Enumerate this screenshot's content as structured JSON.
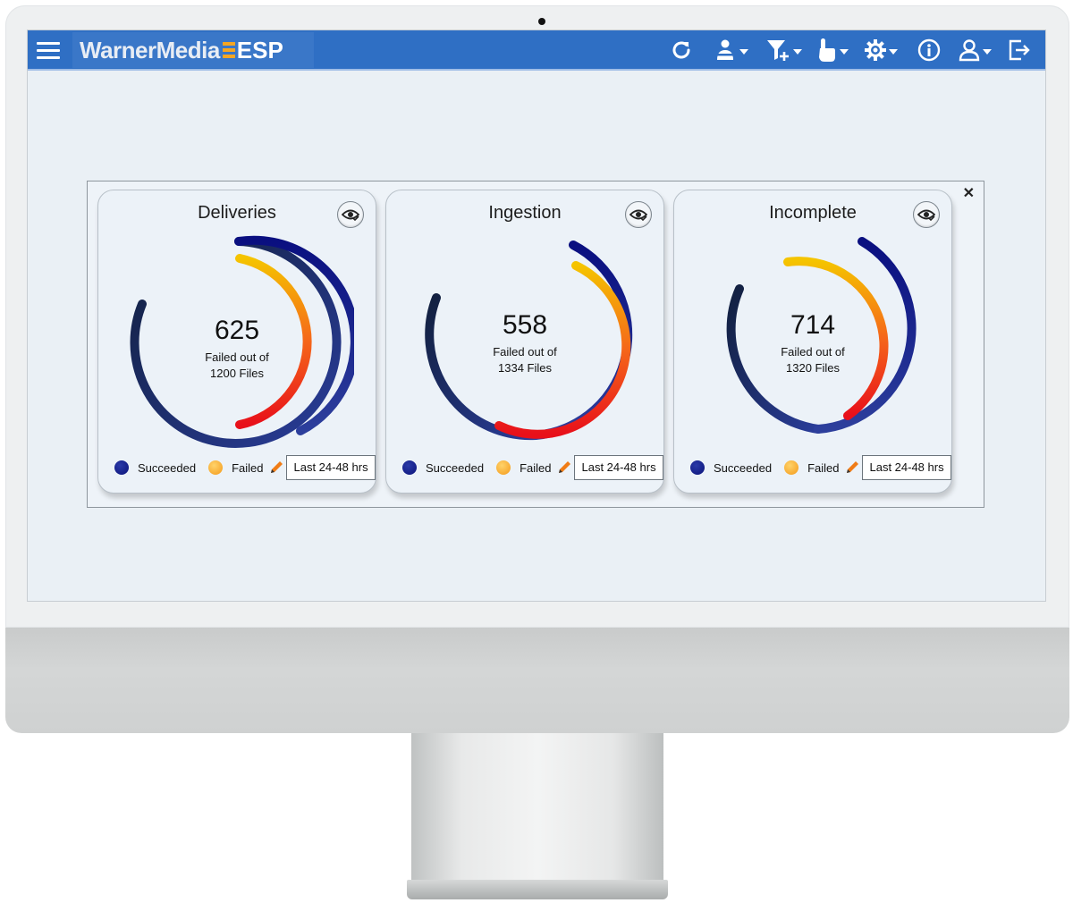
{
  "app": {
    "brand_name": "WarnerMedia",
    "brand_suffix": "ESP"
  },
  "toolbar": {
    "icons": [
      "menu-icon",
      "refresh-icon",
      "user-assign-icon",
      "filter-add-icon",
      "touch-icon",
      "settings-icon",
      "info-icon",
      "user-icon",
      "logout-icon"
    ]
  },
  "cards": [
    {
      "title": "Deliveries",
      "failed": "625",
      "line1": "Failed out of",
      "line2": "1200 Files",
      "failed_count": 625,
      "total_files": 1200,
      "legend_succeeded": "Succeeded",
      "legend_failed": "Failed",
      "range": "Last 24-48 hrs"
    },
    {
      "title": "Ingestion",
      "failed": "558",
      "line1": "Failed out of",
      "line2": "1334 Files",
      "failed_count": 558,
      "total_files": 1334,
      "legend_succeeded": "Succeeded",
      "legend_failed": "Failed",
      "range": "Last 24-48 hrs"
    },
    {
      "title": "Incomplete",
      "failed": "714",
      "line1": "Failed out of",
      "line2": "1320 Files",
      "failed_count": 714,
      "total_files": 1320,
      "legend_succeeded": "Succeeded",
      "legend_failed": "Failed",
      "range": "Last 24-48 hrs"
    }
  ],
  "colors": {
    "header_blue": "#2f6fc4",
    "succeeded_navy": "#0b137a",
    "failed_orange": "#f49a1a",
    "failed_red": "#e8101a"
  }
}
